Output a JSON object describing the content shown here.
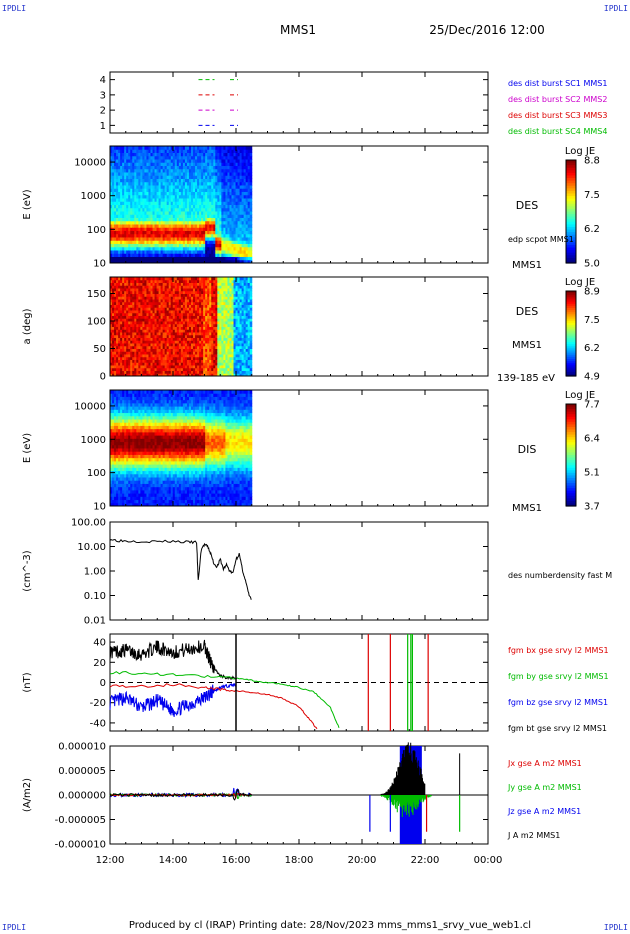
{
  "header": {
    "corner_tl": "IPDLI",
    "corner_tr": "IPDLI",
    "corner_bl": "IPDLI",
    "corner_br": "IPDLI",
    "spacecraft": "MMS1",
    "date": "25/Dec/2016 12:00"
  },
  "footer": {
    "text": "Produced by cl (IRAP)   Printing date: 28/Nov/2023   mms_mms1_srvy_vue_web1.cl"
  },
  "time_axis": {
    "range_hours": [
      12,
      24
    ],
    "ticks": [
      12,
      14,
      16,
      18,
      20,
      22,
      24
    ],
    "tick_labels": [
      "12:00",
      "14:00",
      "16:00",
      "18:00",
      "20:00",
      "22:00",
      "00:00"
    ]
  },
  "colors": {
    "black": "#000000",
    "red": "#dd0000",
    "green": "#00bb00",
    "blue": "#0000ee",
    "magenta": "#cc00cc"
  },
  "chart_data": [
    {
      "type": "scatter",
      "panel": "burst",
      "yticks": [
        1,
        2,
        3,
        4
      ],
      "ylim": [
        0.5,
        4.5
      ],
      "series": [
        {
          "name": "des dist burst SC1 MMS1",
          "color": "#0000ee",
          "y": 1,
          "times": [
            15.0,
            16.0
          ]
        },
        {
          "name": "des dist burst SC2 MMS2",
          "color": "#cc00cc",
          "y": 2,
          "times": [
            15.0,
            16.0
          ]
        },
        {
          "name": "des dist burst SC3 MMS3",
          "color": "#dd0000",
          "y": 3,
          "times": [
            15.0,
            16.0
          ]
        },
        {
          "name": "des dist burst SC4 MMS4",
          "color": "#00bb00",
          "y": 4,
          "times": [
            15.0,
            16.0
          ]
        }
      ]
    },
    {
      "type": "heatmap",
      "panel": "des_energy",
      "ylabel": "E (eV)",
      "yscale": "log",
      "ylim": [
        10,
        30000
      ],
      "yticks": [
        10,
        100,
        1000,
        10000
      ],
      "data_end_hour": 16.5,
      "labels": [
        "DES",
        "edp scpot MMS1",
        "MMS1"
      ],
      "colorbar": {
        "title": "Log JE",
        "min": 5.0,
        "max": 8.8,
        "ticks": [
          "8.8",
          "7.5",
          "6.2",
          "5.0"
        ]
      }
    },
    {
      "type": "heatmap",
      "panel": "des_pitch",
      "ylabel": "a (deg)",
      "ylim": [
        0,
        180
      ],
      "yticks": [
        0,
        50,
        100,
        150
      ],
      "data_end_hour": 16.5,
      "labels": [
        "DES",
        "MMS1",
        "139-185 eV"
      ],
      "colorbar": {
        "title": "Log JE",
        "min": 4.9,
        "max": 8.9,
        "ticks": [
          "8.9",
          "7.5",
          "6.2",
          "4.9"
        ]
      }
    },
    {
      "type": "heatmap",
      "panel": "dis_energy",
      "ylabel": "E (eV)",
      "yscale": "log",
      "ylim": [
        10,
        30000
      ],
      "yticks": [
        10,
        100,
        1000,
        10000
      ],
      "data_end_hour": 16.5,
      "labels": [
        "DIS",
        "MMS1"
      ],
      "colorbar": {
        "title": "Log JE",
        "min": 3.7,
        "max": 7.7,
        "ticks": [
          "7.7",
          "6.4",
          "5.1",
          "3.7"
        ]
      }
    },
    {
      "type": "line",
      "panel": "density",
      "ylabel": "(cm^-3)",
      "yscale": "log",
      "ylim": [
        0.01,
        100
      ],
      "yticks": [
        0.01,
        0.1,
        1,
        10,
        100
      ],
      "ytick_labels": [
        "0.01",
        "0.10",
        "1.00",
        "10.00",
        "100.00"
      ],
      "series": [
        {
          "name": "des numberdensity fast M",
          "color": "#000000",
          "x": [
            12.0,
            12.2,
            12.5,
            13.0,
            13.5,
            14.0,
            14.5,
            14.75,
            14.8,
            14.9,
            15.0,
            15.1,
            15.2,
            15.3,
            15.4,
            15.5,
            15.6,
            15.7,
            15.8,
            15.9,
            16.0,
            16.1,
            16.2,
            16.3,
            16.4,
            16.5
          ],
          "y": [
            20,
            18,
            17,
            16.5,
            16,
            16.5,
            15,
            15,
            0.4,
            8,
            12,
            10,
            5,
            2,
            1.5,
            3,
            1.2,
            1.8,
            1.0,
            0.8,
            3,
            5,
            1.2,
            0.4,
            0.12,
            0.06
          ]
        }
      ]
    },
    {
      "type": "line",
      "panel": "bfield",
      "ylabel": "(nT)",
      "ylim": [
        -48,
        48
      ],
      "yticks": [
        -40,
        -20,
        0,
        20,
        40
      ],
      "series": [
        {
          "name": "fgm bx gse srvy l2 MMS1",
          "color": "#dd0000",
          "x": [
            12.0,
            13.0,
            14.0,
            15.0,
            15.5,
            16.0,
            16.5,
            17.0,
            17.5,
            18.0,
            18.3,
            18.6
          ],
          "y": [
            -3,
            -4,
            -2,
            -5,
            -7,
            -8,
            -10,
            -12,
            -16,
            -24,
            -35,
            -47
          ]
        },
        {
          "name": "fgm by gse srvy l2 MMS1",
          "color": "#00bb00",
          "x": [
            12.0,
            13.0,
            14.0,
            15.0,
            16.0,
            16.5,
            17.0,
            17.5,
            18.0,
            18.5,
            19.0,
            19.3
          ],
          "y": [
            10,
            9,
            8,
            6,
            4,
            2,
            0,
            -2,
            -5,
            -10,
            -25,
            -47
          ]
        },
        {
          "name": "fgm bz gse srvy l2 MMS1",
          "color": "#0000ee",
          "x": [
            12.0,
            12.5,
            13.0,
            13.5,
            14.0,
            14.5,
            15.0,
            15.3,
            15.6,
            16.0
          ],
          "y": [
            -20,
            -15,
            -25,
            -18,
            -28,
            -22,
            -15,
            -8,
            -4,
            -2
          ]
        },
        {
          "name": "fgm bt gse srvy l2 MMS1",
          "color": "#000000",
          "x": [
            12.0,
            12.5,
            13.0,
            13.5,
            14.0,
            14.5,
            15.0,
            15.2,
            15.5,
            16.0
          ],
          "y": [
            30,
            32,
            28,
            35,
            30,
            33,
            36,
            20,
            6,
            4
          ]
        }
      ]
    },
    {
      "type": "line",
      "panel": "current",
      "ylabel": "(A/m2)",
      "ylim": [
        -1e-05,
        1e-05
      ],
      "yticks": [
        -1e-05,
        -5e-06,
        0,
        5e-06,
        1e-05
      ],
      "ytick_labels": [
        "-0.000010",
        "-0.000005",
        "0.000000",
        "0.000005",
        "0.000010"
      ],
      "series": [
        {
          "name": "Jx gse A m2 MMS1",
          "color": "#dd0000"
        },
        {
          "name": "Jy gse A m2 MMS1",
          "color": "#00bb00"
        },
        {
          "name": "Jz gse A m2 MMS1",
          "color": "#0000ee"
        },
        {
          "name": "J A m2 MMS1",
          "color": "#000000"
        }
      ]
    }
  ]
}
